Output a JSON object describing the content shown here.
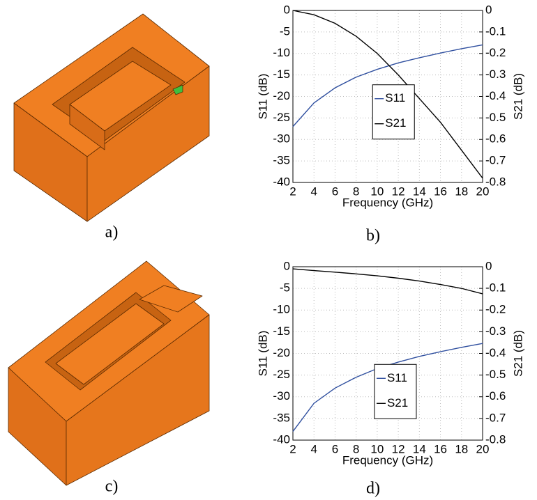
{
  "panel_labels": [
    "a)",
    "b)",
    "c)",
    "d)"
  ],
  "chart_data": [
    {
      "type": "line",
      "xlabel": "Frequency (GHz)",
      "ylabel": "S11 (dB)",
      "y2label": "S21 (dB)",
      "x": [
        2,
        4,
        6,
        8,
        10,
        12,
        14,
        16,
        18,
        20
      ],
      "xlim": [
        2,
        20
      ],
      "xticks": [
        2,
        4,
        6,
        8,
        10,
        12,
        14,
        16,
        18,
        20
      ],
      "ylim": [
        -40,
        0
      ],
      "yticks": [
        -40,
        -35,
        -30,
        -25,
        -20,
        -15,
        -10,
        -5,
        0
      ],
      "y2lim": [
        -0.8,
        0
      ],
      "y2ticks": [
        -0.8,
        -0.7,
        -0.6,
        -0.5,
        -0.4,
        -0.3,
        -0.2,
        -0.1,
        0
      ],
      "grid": true,
      "legend": "center",
      "series": [
        {
          "name": "S11",
          "color": "#2f4f9f",
          "values": [
            -27,
            -21.5,
            -18,
            -15.5,
            -13.7,
            -12.2,
            -11,
            -9.9,
            -8.9,
            -8
          ]
        },
        {
          "name": "S21",
          "color": "#000000",
          "axis": "y2",
          "values": [
            0,
            -0.02,
            -0.06,
            -0.12,
            -0.2,
            -0.3,
            -0.41,
            -0.52,
            -0.65,
            -0.78
          ]
        }
      ]
    },
    {
      "type": "line",
      "xlabel": "Frequency (GHz)",
      "ylabel": "S11 (dB)",
      "y2label": "S21 (dB)",
      "x": [
        2,
        4,
        6,
        8,
        10,
        12,
        14,
        16,
        18,
        20
      ],
      "xlim": [
        2,
        20
      ],
      "xticks": [
        2,
        4,
        6,
        8,
        10,
        12,
        14,
        16,
        18,
        20
      ],
      "ylim": [
        -40,
        0
      ],
      "yticks": [
        -40,
        -35,
        -30,
        -25,
        -20,
        -15,
        -10,
        -5,
        0
      ],
      "y2lim": [
        -0.8,
        0
      ],
      "y2ticks": [
        -0.8,
        -0.7,
        -0.6,
        -0.5,
        -0.4,
        -0.3,
        -0.2,
        -0.1,
        0
      ],
      "grid": true,
      "legend": "lower center",
      "series": [
        {
          "name": "S11",
          "color": "#2f4f9f",
          "values": [
            -38,
            -31.5,
            -28,
            -25.5,
            -23.5,
            -22,
            -20.7,
            -19.6,
            -18.6,
            -17.7
          ]
        },
        {
          "name": "S21",
          "color": "#000000",
          "axis": "y2",
          "values": [
            -0.01,
            -0.018,
            -0.025,
            -0.033,
            -0.042,
            -0.053,
            -0.066,
            -0.082,
            -0.1,
            -0.125
          ]
        }
      ]
    }
  ]
}
